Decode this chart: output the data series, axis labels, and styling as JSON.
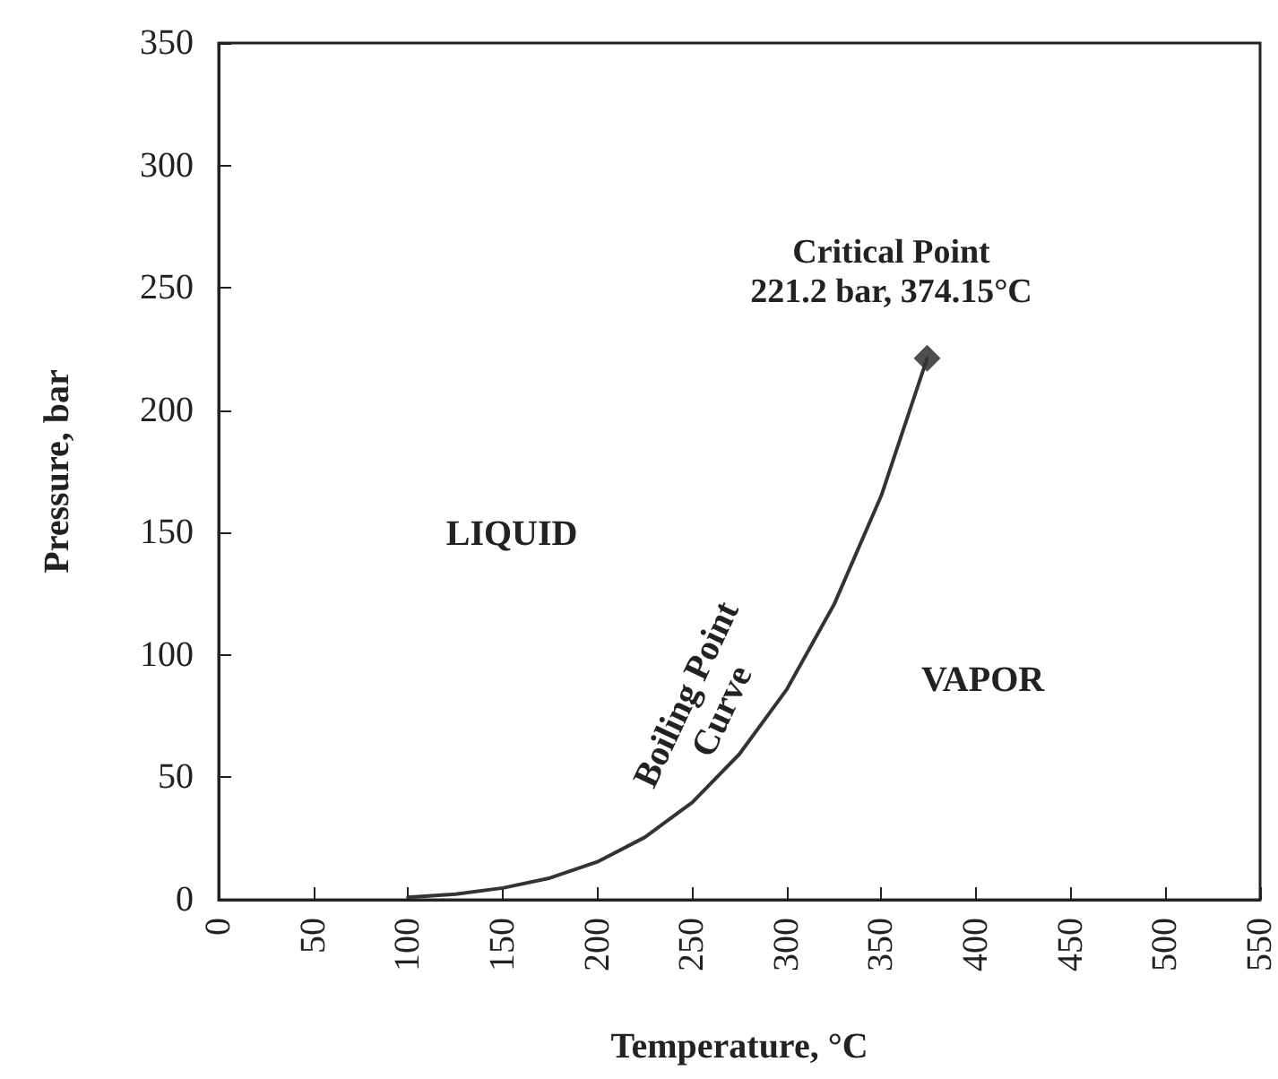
{
  "chart_data": {
    "type": "line",
    "xlabel": "Temperature, °C",
    "ylabel": "Pressure, bar",
    "xlim": [
      0,
      550
    ],
    "xticks": [
      0,
      50,
      100,
      150,
      200,
      250,
      300,
      350,
      400,
      450,
      500,
      550
    ],
    "ylim": [
      0,
      350
    ],
    "yticks": [
      0,
      50,
      100,
      150,
      200,
      250,
      300,
      350
    ],
    "grid": false,
    "series": [
      {
        "color": "#333333",
        "marker": "none",
        "line_style": "solid",
        "x": [
          100,
          125,
          150,
          175,
          200,
          225,
          250,
          275,
          300,
          325,
          350,
          374.15
        ],
        "values": [
          1.0,
          2.3,
          4.8,
          8.9,
          15.5,
          25.5,
          39.7,
          59.5,
          85.9,
          120.6,
          165.2,
          221.2
        ]
      },
      {
        "type": "scatter",
        "color": "#222222",
        "marker": "diamond",
        "x": [
          374.15
        ],
        "values": [
          221.2
        ]
      }
    ],
    "annotations": [
      {
        "text": "Critical Point\n221.2 bar, 374.15°C",
        "x": 374.15,
        "y": 221.2
      },
      "LIQUID",
      "VAPOR",
      "Boiling Point\nCurve"
    ]
  }
}
